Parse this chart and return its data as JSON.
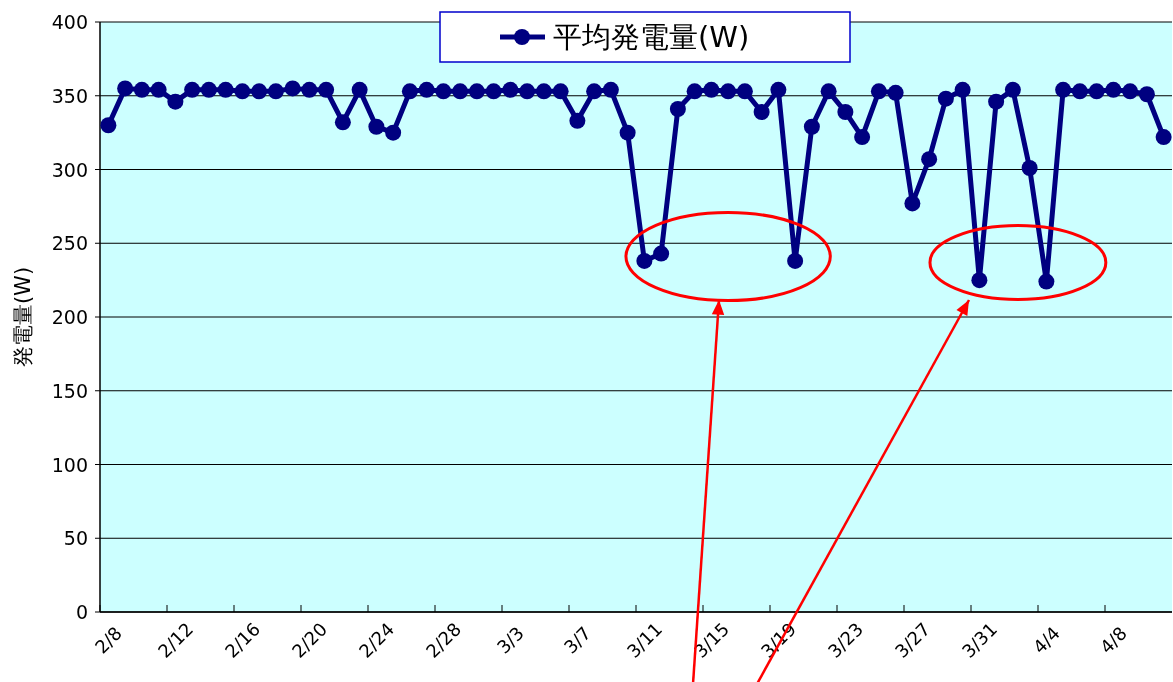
{
  "chart_data": {
    "type": "line",
    "categories": [
      "2/8",
      null,
      null,
      null,
      "2/12",
      null,
      null,
      null,
      "2/16",
      null,
      null,
      null,
      "2/20",
      null,
      null,
      null,
      "2/24",
      null,
      null,
      null,
      "2/28",
      null,
      null,
      null,
      "3/3",
      null,
      null,
      null,
      "3/7",
      null,
      null,
      null,
      "3/11",
      null,
      null,
      null,
      "3/15",
      null,
      null,
      null,
      "3/19",
      null,
      null,
      null,
      "3/23",
      null,
      null,
      null,
      "3/27",
      null,
      null,
      null,
      "3/31",
      null,
      null,
      null,
      "4/4",
      null,
      null,
      null,
      "4/8",
      null,
      null,
      null
    ],
    "series": [
      {
        "name": "平均発電量(W)",
        "color": "#000080",
        "values": [
          330,
          355,
          354,
          354,
          346,
          354,
          354,
          354,
          353,
          353,
          353,
          355,
          354,
          354,
          332,
          354,
          329,
          325,
          353,
          354,
          353,
          353,
          353,
          353,
          354,
          353,
          353,
          353,
          333,
          353,
          354,
          325,
          238,
          243,
          341,
          353,
          354,
          353,
          353,
          339,
          354,
          238,
          329,
          353,
          339,
          322,
          353,
          352,
          277,
          307,
          348,
          354,
          225,
          346,
          354,
          301,
          224,
          354,
          353,
          353,
          354,
          353,
          351,
          322
        ]
      }
    ],
    "ylabel": "発電量(W)",
    "ylim": [
      0,
      400
    ],
    "yticks": [
      0,
      50,
      100,
      150,
      200,
      250,
      300,
      350,
      400
    ],
    "grid": "y",
    "legend": "top",
    "marker": "circle",
    "line_style": "solid"
  }
}
